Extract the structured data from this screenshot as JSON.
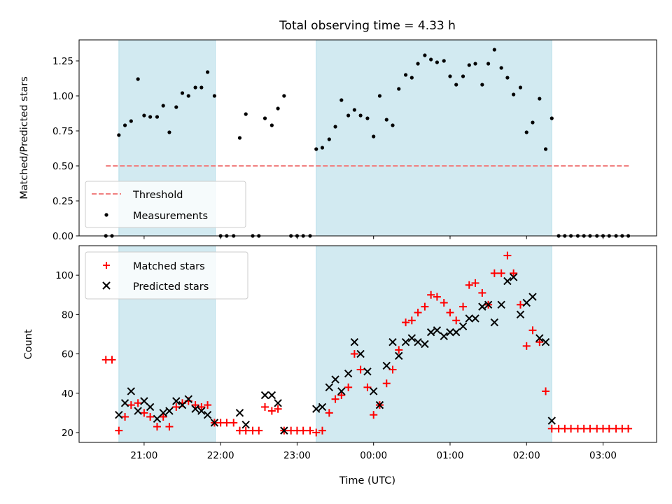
{
  "chart_data": [
    {
      "type": "scatter",
      "title": "Total observing time = 4.33 h",
      "xlabel": "",
      "ylabel": "Matched/Predicted stars",
      "x_unit": "hours relative to 00:00 UTC",
      "xlim": [
        -3.85,
        3.7
      ],
      "ylim": [
        0,
        1.4
      ],
      "yticks": [
        "0.00",
        "0.25",
        "0.50",
        "0.75",
        "1.00",
        "1.25"
      ],
      "grid": false,
      "legend_position": "lower-left",
      "shaded_intervals": [
        [
          -3.33,
          -2.07
        ],
        [
          -0.75,
          2.33
        ]
      ],
      "shade_color": "#add8e6",
      "threshold": {
        "name": "Threshold",
        "value": 0.5,
        "x_range": [
          -3.5,
          3.35
        ],
        "color": "#f08080"
      },
      "series": [
        {
          "name": "Measurements",
          "color": "#000000",
          "marker": "dot",
          "points": [
            [
              -3.5,
              0.0
            ],
            [
              -3.42,
              0.0
            ],
            [
              -3.33,
              0.72
            ],
            [
              -3.25,
              0.79
            ],
            [
              -3.17,
              0.82
            ],
            [
              -3.08,
              1.12
            ],
            [
              -3.0,
              0.86
            ],
            [
              -2.92,
              0.85
            ],
            [
              -2.83,
              0.85
            ],
            [
              -2.75,
              0.93
            ],
            [
              -2.67,
              0.74
            ],
            [
              -2.58,
              0.92
            ],
            [
              -2.5,
              1.02
            ],
            [
              -2.42,
              1.0
            ],
            [
              -2.33,
              1.06
            ],
            [
              -2.25,
              1.06
            ],
            [
              -2.17,
              1.17
            ],
            [
              -2.08,
              1.0
            ],
            [
              -2.0,
              0.0
            ],
            [
              -1.92,
              0.0
            ],
            [
              -1.83,
              0.0
            ],
            [
              -1.75,
              0.7
            ],
            [
              -1.67,
              0.87
            ],
            [
              -1.58,
              0.0
            ],
            [
              -1.5,
              0.0
            ],
            [
              -1.42,
              0.84
            ],
            [
              -1.33,
              0.79
            ],
            [
              -1.25,
              0.91
            ],
            [
              -1.17,
              1.0
            ],
            [
              -1.08,
              0.0
            ],
            [
              -1.0,
              0.0
            ],
            [
              -0.92,
              0.0
            ],
            [
              -0.83,
              0.0
            ],
            [
              -0.75,
              0.62
            ],
            [
              -0.67,
              0.63
            ],
            [
              -0.58,
              0.69
            ],
            [
              -0.5,
              0.78
            ],
            [
              -0.42,
              0.97
            ],
            [
              -0.33,
              0.86
            ],
            [
              -0.25,
              0.9
            ],
            [
              -0.17,
              0.86
            ],
            [
              -0.08,
              0.84
            ],
            [
              0.0,
              0.71
            ],
            [
              0.08,
              1.0
            ],
            [
              0.17,
              0.83
            ],
            [
              0.25,
              0.79
            ],
            [
              0.33,
              1.05
            ],
            [
              0.42,
              1.15
            ],
            [
              0.5,
              1.13
            ],
            [
              0.58,
              1.23
            ],
            [
              0.67,
              1.29
            ],
            [
              0.75,
              1.26
            ],
            [
              0.83,
              1.24
            ],
            [
              0.92,
              1.25
            ],
            [
              1.0,
              1.14
            ],
            [
              1.08,
              1.08
            ],
            [
              1.17,
              1.14
            ],
            [
              1.25,
              1.22
            ],
            [
              1.33,
              1.23
            ],
            [
              1.42,
              1.08
            ],
            [
              1.5,
              1.23
            ],
            [
              1.58,
              1.33
            ],
            [
              1.67,
              1.2
            ],
            [
              1.75,
              1.13
            ],
            [
              1.83,
              1.01
            ],
            [
              1.92,
              1.06
            ],
            [
              2.0,
              0.74
            ],
            [
              2.08,
              0.81
            ],
            [
              2.17,
              0.98
            ],
            [
              2.25,
              0.62
            ],
            [
              2.33,
              0.84
            ],
            [
              2.42,
              0.0
            ],
            [
              2.5,
              0.0
            ],
            [
              2.58,
              0.0
            ],
            [
              2.67,
              0.0
            ],
            [
              2.75,
              0.0
            ],
            [
              2.83,
              0.0
            ],
            [
              2.92,
              0.0
            ],
            [
              3.0,
              0.0
            ],
            [
              3.08,
              0.0
            ],
            [
              3.17,
              0.0
            ],
            [
              3.25,
              0.0
            ],
            [
              3.33,
              0.0
            ]
          ]
        }
      ]
    },
    {
      "type": "scatter",
      "title": "",
      "xlabel": "Time (UTC)",
      "ylabel": "Count",
      "x_unit": "hours relative to 00:00 UTC",
      "xlim": [
        -3.85,
        3.7
      ],
      "ylim": [
        15,
        115
      ],
      "yticks": [
        "20",
        "40",
        "60",
        "80",
        "100"
      ],
      "xticks": [
        {
          "value": -3,
          "label": "21:00"
        },
        {
          "value": -2,
          "label": "22:00"
        },
        {
          "value": -1,
          "label": "23:00"
        },
        {
          "value": 0,
          "label": "00:00"
        },
        {
          "value": 1,
          "label": "01:00"
        },
        {
          "value": 2,
          "label": "02:00"
        },
        {
          "value": 3,
          "label": "03:00"
        }
      ],
      "grid": false,
      "legend_position": "upper-left",
      "shaded_intervals": [
        [
          -3.33,
          -2.07
        ],
        [
          -0.75,
          2.33
        ]
      ],
      "shade_color": "#add8e6",
      "series": [
        {
          "name": "Matched stars",
          "color": "#ff0000",
          "marker": "plus",
          "points": [
            [
              -3.5,
              57
            ],
            [
              -3.42,
              57
            ],
            [
              -3.33,
              21
            ],
            [
              -3.25,
              28
            ],
            [
              -3.17,
              34
            ],
            [
              -3.08,
              35
            ],
            [
              -3.0,
              30
            ],
            [
              -2.92,
              28
            ],
            [
              -2.83,
              23
            ],
            [
              -2.75,
              28
            ],
            [
              -2.67,
              23
            ],
            [
              -2.58,
              33
            ],
            [
              -2.5,
              35
            ],
            [
              -2.42,
              36
            ],
            [
              -2.33,
              34
            ],
            [
              -2.25,
              33
            ],
            [
              -2.17,
              34
            ],
            [
              -2.08,
              25
            ],
            [
              -2.0,
              25
            ],
            [
              -1.92,
              25
            ],
            [
              -1.83,
              25
            ],
            [
              -1.75,
              21
            ],
            [
              -1.67,
              21
            ],
            [
              -1.58,
              21
            ],
            [
              -1.5,
              21
            ],
            [
              -1.42,
              33
            ],
            [
              -1.33,
              31
            ],
            [
              -1.25,
              32
            ],
            [
              -1.17,
              21
            ],
            [
              -1.08,
              21
            ],
            [
              -1.0,
              21
            ],
            [
              -0.92,
              21
            ],
            [
              -0.83,
              21
            ],
            [
              -0.75,
              20
            ],
            [
              -0.67,
              21
            ],
            [
              -0.58,
              30
            ],
            [
              -0.5,
              37
            ],
            [
              -0.42,
              39
            ],
            [
              -0.33,
              43
            ],
            [
              -0.25,
              60
            ],
            [
              -0.17,
              52
            ],
            [
              -0.08,
              43
            ],
            [
              0.0,
              29
            ],
            [
              0.08,
              34
            ],
            [
              0.17,
              45
            ],
            [
              0.25,
              52
            ],
            [
              0.33,
              62
            ],
            [
              0.42,
              76
            ],
            [
              0.5,
              77
            ],
            [
              0.58,
              81
            ],
            [
              0.67,
              84
            ],
            [
              0.75,
              90
            ],
            [
              0.83,
              89
            ],
            [
              0.92,
              86
            ],
            [
              1.0,
              81
            ],
            [
              1.08,
              77
            ],
            [
              1.17,
              84
            ],
            [
              1.25,
              95
            ],
            [
              1.33,
              96
            ],
            [
              1.42,
              91
            ],
            [
              1.5,
              85
            ],
            [
              1.58,
              101
            ],
            [
              1.67,
              101
            ],
            [
              1.75,
              110
            ],
            [
              1.83,
              101
            ],
            [
              1.92,
              85
            ],
            [
              2.0,
              64
            ],
            [
              2.08,
              72
            ],
            [
              2.17,
              66
            ],
            [
              2.25,
              41
            ],
            [
              2.33,
              22
            ],
            [
              2.42,
              22
            ],
            [
              2.5,
              22
            ],
            [
              2.58,
              22
            ],
            [
              2.67,
              22
            ],
            [
              2.75,
              22
            ],
            [
              2.83,
              22
            ],
            [
              2.92,
              22
            ],
            [
              3.0,
              22
            ],
            [
              3.08,
              22
            ],
            [
              3.17,
              22
            ],
            [
              3.25,
              22
            ],
            [
              3.33,
              22
            ]
          ]
        },
        {
          "name": "Predicted stars",
          "color": "#000000",
          "marker": "x",
          "points": [
            [
              -3.33,
              29
            ],
            [
              -3.25,
              35
            ],
            [
              -3.17,
              41
            ],
            [
              -3.08,
              31
            ],
            [
              -3.0,
              36
            ],
            [
              -2.92,
              33
            ],
            [
              -2.83,
              27
            ],
            [
              -2.75,
              30
            ],
            [
              -2.67,
              31
            ],
            [
              -2.58,
              36
            ],
            [
              -2.5,
              34
            ],
            [
              -2.42,
              37
            ],
            [
              -2.33,
              32
            ],
            [
              -2.25,
              31
            ],
            [
              -2.17,
              29
            ],
            [
              -2.08,
              25
            ],
            [
              -1.75,
              30
            ],
            [
              -1.67,
              24
            ],
            [
              -1.42,
              39
            ],
            [
              -1.33,
              39
            ],
            [
              -1.25,
              35
            ],
            [
              -1.17,
              21
            ],
            [
              -0.75,
              32
            ],
            [
              -0.67,
              33
            ],
            [
              -0.58,
              43
            ],
            [
              -0.5,
              47
            ],
            [
              -0.42,
              41
            ],
            [
              -0.33,
              50
            ],
            [
              -0.25,
              66
            ],
            [
              -0.17,
              60
            ],
            [
              -0.08,
              51
            ],
            [
              0.0,
              41
            ],
            [
              0.08,
              34
            ],
            [
              0.17,
              54
            ],
            [
              0.25,
              66
            ],
            [
              0.33,
              59
            ],
            [
              0.42,
              66
            ],
            [
              0.5,
              68
            ],
            [
              0.58,
              66
            ],
            [
              0.67,
              65
            ],
            [
              0.75,
              71
            ],
            [
              0.83,
              72
            ],
            [
              0.92,
              69
            ],
            [
              1.0,
              71
            ],
            [
              1.08,
              71
            ],
            [
              1.17,
              74
            ],
            [
              1.25,
              78
            ],
            [
              1.33,
              78
            ],
            [
              1.42,
              84
            ],
            [
              1.5,
              85
            ],
            [
              1.58,
              76
            ],
            [
              1.67,
              85
            ],
            [
              1.75,
              97
            ],
            [
              1.83,
              99
            ],
            [
              1.92,
              80
            ],
            [
              2.0,
              86
            ],
            [
              2.08,
              89
            ],
            [
              2.17,
              68
            ],
            [
              2.25,
              66
            ],
            [
              2.33,
              26
            ]
          ]
        }
      ]
    }
  ]
}
